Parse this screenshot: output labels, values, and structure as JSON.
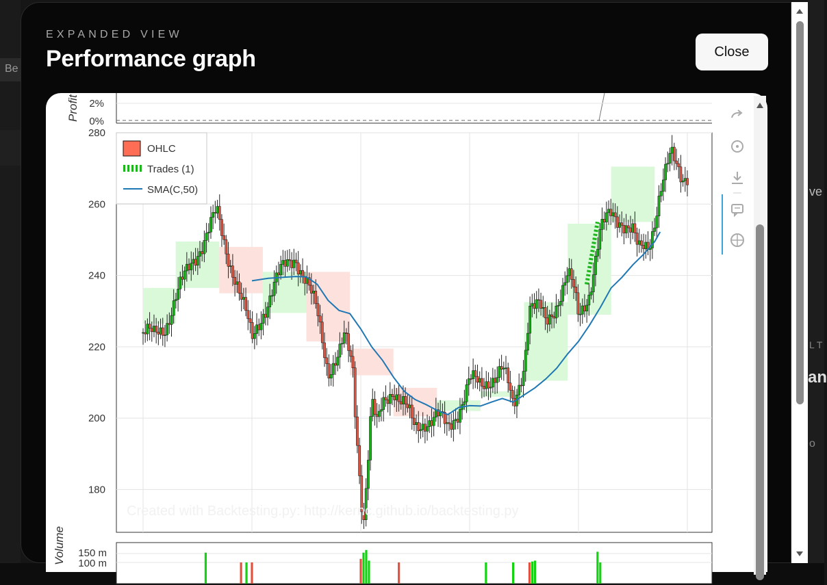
{
  "background": {
    "frag_left": "Be",
    "frag_right_1": "ve",
    "frag_right_2": "L T",
    "frag_right_3": "an",
    "frag_right_4": "o"
  },
  "modal": {
    "eyebrow": "EXPANDED VIEW",
    "title": "Performance graph",
    "close_label": "Close"
  },
  "toolbar": {
    "icons": [
      "redo-icon",
      "reset-icon",
      "save-icon",
      "hover-tooltip-icon",
      "crosshair-icon"
    ]
  },
  "chart_data": {
    "type": "candlestick",
    "watermark": "Created with Backtesting.py: http://kernc.github.io/backtesting.py",
    "profit_panel": {
      "ylabel": "Profit",
      "tick_labels": [
        "2%",
        "0%"
      ]
    },
    "price_panel": {
      "ylim": [
        168,
        280
      ],
      "y_ticks": [
        180,
        200,
        220,
        240,
        260,
        280
      ],
      "legend": [
        "OHLC",
        "Trades (1)",
        "SMA(C,50)"
      ],
      "legend_placement": "top-left",
      "sma": [
        [
          0.2,
          238.5
        ],
        [
          0.23,
          239.2
        ],
        [
          0.26,
          239.5
        ],
        [
          0.28,
          239.7
        ],
        [
          0.3,
          239.6
        ],
        [
          0.32,
          237.5
        ],
        [
          0.34,
          233
        ],
        [
          0.36,
          230.2
        ],
        [
          0.38,
          229.3
        ],
        [
          0.4,
          225
        ],
        [
          0.42,
          220
        ],
        [
          0.44,
          216.2
        ],
        [
          0.46,
          211.5
        ],
        [
          0.48,
          207.5
        ],
        [
          0.5,
          205.2
        ],
        [
          0.52,
          203.8
        ],
        [
          0.54,
          202.2
        ],
        [
          0.56,
          201
        ],
        [
          0.58,
          203
        ],
        [
          0.6,
          203.5
        ],
        [
          0.62,
          203.4
        ],
        [
          0.64,
          204.5
        ],
        [
          0.66,
          205.5
        ],
        [
          0.68,
          204.5
        ],
        [
          0.7,
          206.5
        ],
        [
          0.72,
          208.5
        ],
        [
          0.74,
          211
        ],
        [
          0.76,
          214
        ],
        [
          0.78,
          218
        ],
        [
          0.8,
          221.5
        ],
        [
          0.82,
          226
        ],
        [
          0.84,
          231
        ],
        [
          0.86,
          236.5
        ],
        [
          0.88,
          239.5
        ],
        [
          0.9,
          243
        ],
        [
          0.92,
          246
        ],
        [
          0.94,
          249.5
        ],
        [
          0.95,
          252.2
        ]
      ],
      "trade_segment": [
        [
          0.815,
          237.5
        ],
        [
          0.835,
          255
        ]
      ],
      "price_path": [
        [
          0.0,
          224
        ],
        [
          0.02,
          222.5
        ],
        [
          0.04,
          226
        ],
        [
          0.06,
          234
        ],
        [
          0.08,
          240
        ],
        [
          0.1,
          247
        ],
        [
          0.12,
          253
        ],
        [
          0.135,
          257
        ],
        [
          0.15,
          248
        ],
        [
          0.17,
          240
        ],
        [
          0.19,
          228
        ],
        [
          0.2,
          221
        ],
        [
          0.22,
          230
        ],
        [
          0.24,
          237
        ],
        [
          0.26,
          242
        ],
        [
          0.28,
          246
        ],
        [
          0.3,
          238
        ],
        [
          0.32,
          229
        ],
        [
          0.34,
          214
        ],
        [
          0.36,
          218
        ],
        [
          0.37,
          222
        ],
        [
          0.385,
          214
        ],
        [
          0.39,
          201
        ],
        [
          0.4,
          180
        ],
        [
          0.405,
          172
        ],
        [
          0.41,
          182
        ],
        [
          0.42,
          205
        ],
        [
          0.43,
          197
        ],
        [
          0.44,
          203
        ],
        [
          0.46,
          209
        ],
        [
          0.48,
          204
        ],
        [
          0.5,
          196
        ],
        [
          0.52,
          200
        ],
        [
          0.54,
          201
        ],
        [
          0.56,
          196
        ],
        [
          0.58,
          203
        ],
        [
          0.6,
          211
        ],
        [
          0.62,
          208
        ],
        [
          0.64,
          212
        ],
        [
          0.66,
          214
        ],
        [
          0.67,
          209
        ],
        [
          0.68,
          202
        ],
        [
          0.7,
          216
        ],
        [
          0.71,
          232
        ],
        [
          0.73,
          230
        ],
        [
          0.74,
          226
        ],
        [
          0.76,
          233
        ],
        [
          0.78,
          240
        ],
        [
          0.79,
          236
        ],
        [
          0.8,
          228
        ],
        [
          0.82,
          236
        ],
        [
          0.84,
          252
        ],
        [
          0.86,
          257
        ],
        [
          0.88,
          256
        ],
        [
          0.9,
          252
        ],
        [
          0.91,
          246
        ],
        [
          0.93,
          249
        ],
        [
          0.95,
          264
        ],
        [
          0.97,
          273
        ],
        [
          0.99,
          268
        ],
        [
          1.0,
          269
        ]
      ],
      "regime_boxes": [
        {
          "x0": 0.0,
          "x1": 0.06,
          "y0": 226.5,
          "y1": 236.5,
          "color": "#d9f9d9"
        },
        {
          "x0": 0.06,
          "x1": 0.14,
          "y0": 236.5,
          "y1": 249.5,
          "color": "#d9f9d9"
        },
        {
          "x0": 0.14,
          "x1": 0.22,
          "y0": 235,
          "y1": 248,
          "color": "#fde1dd"
        },
        {
          "x0": 0.22,
          "x1": 0.3,
          "y0": 229.5,
          "y1": 241,
          "color": "#d9f9d9"
        },
        {
          "x0": 0.3,
          "x1": 0.38,
          "y0": 221.5,
          "y1": 241,
          "color": "#fde1dd"
        },
        {
          "x0": 0.38,
          "x1": 0.46,
          "y0": 212,
          "y1": 219.5,
          "color": "#fde1dd"
        },
        {
          "x0": 0.46,
          "x1": 0.54,
          "y0": 200.5,
          "y1": 208.5,
          "color": "#fde1dd"
        },
        {
          "x0": 0.54,
          "x1": 0.62,
          "y0": 202,
          "y1": 205,
          "color": "#d9f9d9"
        },
        {
          "x0": 0.62,
          "x1": 0.7,
          "y0": 206,
          "y1": 207.5,
          "color": "#d9f9d9"
        },
        {
          "x0": 0.7,
          "x1": 0.78,
          "y0": 210.5,
          "y1": 232.5,
          "color": "#d9f9d9"
        },
        {
          "x0": 0.78,
          "x1": 0.86,
          "y0": 229,
          "y1": 254.5,
          "color": "#d9f9d9"
        },
        {
          "x0": 0.86,
          "x1": 0.94,
          "y0": 255,
          "y1": 270.5,
          "color": "#d9f9d9"
        }
      ]
    },
    "volume_panel": {
      "ylabel": "Volume",
      "tick_labels": [
        "150 m",
        "100 m"
      ],
      "bars": [
        [
          0.115,
          155,
          "green"
        ],
        [
          0.18,
          100,
          "red"
        ],
        [
          0.19,
          100,
          "green"
        ],
        [
          0.2,
          100,
          "red"
        ],
        [
          0.4,
          120,
          "red"
        ],
        [
          0.405,
          155,
          "green"
        ],
        [
          0.41,
          170,
          "green"
        ],
        [
          0.415,
          110,
          "green"
        ],
        [
          0.47,
          100,
          "red"
        ],
        [
          0.63,
          100,
          "green"
        ],
        [
          0.68,
          100,
          "green"
        ],
        [
          0.71,
          100,
          "red"
        ],
        [
          0.715,
          105,
          "green"
        ],
        [
          0.72,
          110,
          "green"
        ],
        [
          0.835,
          160,
          "green"
        ],
        [
          0.84,
          100,
          "green"
        ]
      ]
    }
  }
}
